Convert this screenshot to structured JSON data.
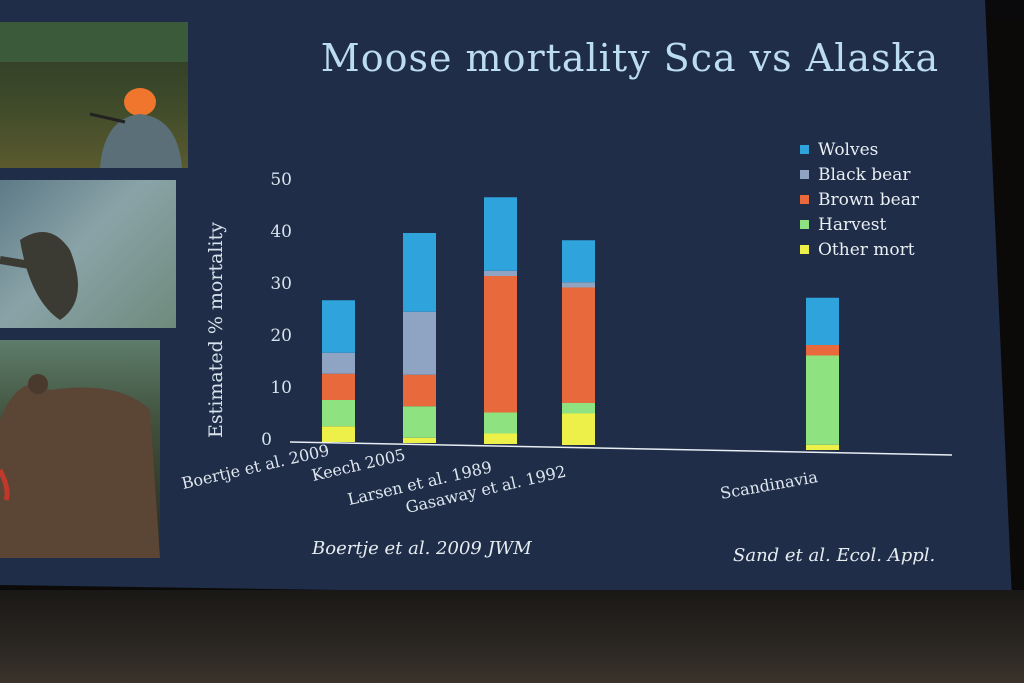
{
  "slide": {
    "title": "Moose mortality Sca vs Alaska",
    "citation_left": "Boertje et al. 2009 JWM",
    "citation_right": "Sand et al.  Ecol. Appl."
  },
  "colors": {
    "background": "#1f2d49",
    "wolves": "#2ea3dc",
    "black_bear": "#8fa3c2",
    "brown_bear": "#e86a3c",
    "harvest": "#8ee27f",
    "other_mort": "#eef04a"
  },
  "chart_data": {
    "type": "bar",
    "stacked": true,
    "title": "Moose mortality Sca vs Alaska",
    "xlabel": "",
    "ylabel": "Estimated % mortality",
    "ylim": [
      0,
      50
    ],
    "yticks": [
      "0",
      "10",
      "20",
      "30",
      "40",
      "50"
    ],
    "categories": [
      "Boertje et al. 2009",
      "Keech 2005",
      "Larsen et al. 1989",
      "Gasaway et al. 1992",
      "Scandinavia"
    ],
    "legend_position": "top-right",
    "grid": false,
    "series": [
      {
        "name": "Other mort",
        "color": "#eef04a",
        "values": [
          3,
          1,
          2,
          6,
          1
        ]
      },
      {
        "name": "Harvest",
        "color": "#8ee27f",
        "values": [
          5,
          6,
          4,
          2,
          17
        ]
      },
      {
        "name": "Brown bear",
        "color": "#e86a3c",
        "values": [
          5,
          6,
          26,
          22,
          2
        ]
      },
      {
        "name": "Black bear",
        "color": "#8fa3c2",
        "values": [
          4,
          12,
          1,
          1,
          0
        ]
      },
      {
        "name": "Wolves",
        "color": "#2ea3dc",
        "values": [
          10,
          15,
          14,
          8,
          9
        ]
      }
    ]
  }
}
